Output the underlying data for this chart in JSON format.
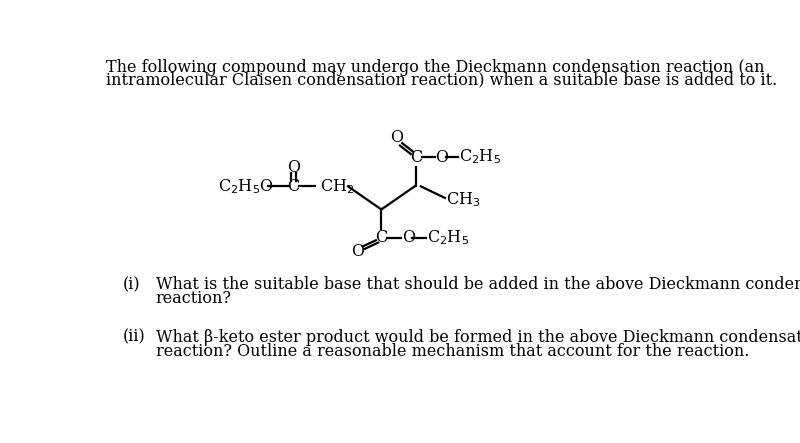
{
  "bg_color": "#ffffff",
  "text_color": "#000000",
  "title_line1": "The following compound may undergo the Dieckmann condensation reaction (an",
  "title_line2": "intramolecular Claisen condensation reaction) when a suitable base is added to it.",
  "question_i_label": "(i)",
  "question_i_line1": "What is the suitable base that should be added in the above Dieckmann condensation",
  "question_i_line2": "reaction?",
  "question_ii_label": "(ii)",
  "question_ii_line1": "What β-keto ester product would be formed in the above Dieckmann condensation",
  "question_ii_line2": "reaction? Outline a reasonable mechanism that account for the reaction.",
  "font_size_title": 11.5,
  "font_size_body": 11.5,
  "font_size_chem": 11.5,
  "lw": 1.6
}
